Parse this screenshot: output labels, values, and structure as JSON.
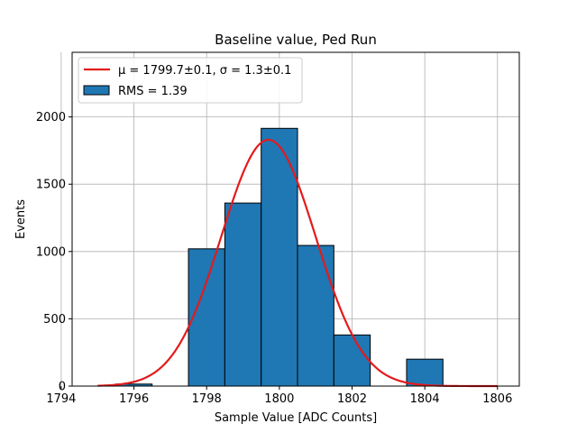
{
  "chart_data": {
    "type": "bar",
    "title": "Baseline value, Ped Run",
    "xlabel": "Sample Value [ADC Counts]",
    "ylabel": "Events",
    "xlim": [
      1794.3,
      1806.6
    ],
    "ylim": [
      0,
      2480
    ],
    "xticks": [
      "1794",
      "1796",
      "1798",
      "1800",
      "1802",
      "1804",
      "1806"
    ],
    "yticks": [
      "0",
      "500",
      "1000",
      "1500",
      "2000"
    ],
    "grid": true,
    "legend_position": "top-left",
    "bars": [
      {
        "left": 1795.5,
        "right": 1796.5,
        "value": 15
      },
      {
        "left": 1797.5,
        "right": 1798.5,
        "value": 1020
      },
      {
        "left": 1798.5,
        "right": 1799.5,
        "value": 1360
      },
      {
        "left": 1799.5,
        "right": 1800.5,
        "value": 1915
      },
      {
        "left": 1800.5,
        "right": 1801.5,
        "value": 1045
      },
      {
        "left": 1801.5,
        "right": 1802.5,
        "value": 380
      },
      {
        "left": 1803.5,
        "right": 1804.5,
        "value": 200
      }
    ],
    "fit": {
      "type": "gaussian",
      "mu": 1799.7,
      "sigma": 1.3,
      "amplitude": 1830,
      "x_range": [
        1795,
        1806
      ]
    },
    "legend": [
      {
        "label": "μ = 1799.7±0.1, σ = 1.3±0.1",
        "kind": "line"
      },
      {
        "label": "RMS = 1.39",
        "kind": "patch"
      }
    ],
    "colors": {
      "bar_fill": "#1f77b4",
      "bar_edge": "#000000",
      "fit_line": "#e31a1c",
      "grid": "#b0b0b0"
    }
  }
}
